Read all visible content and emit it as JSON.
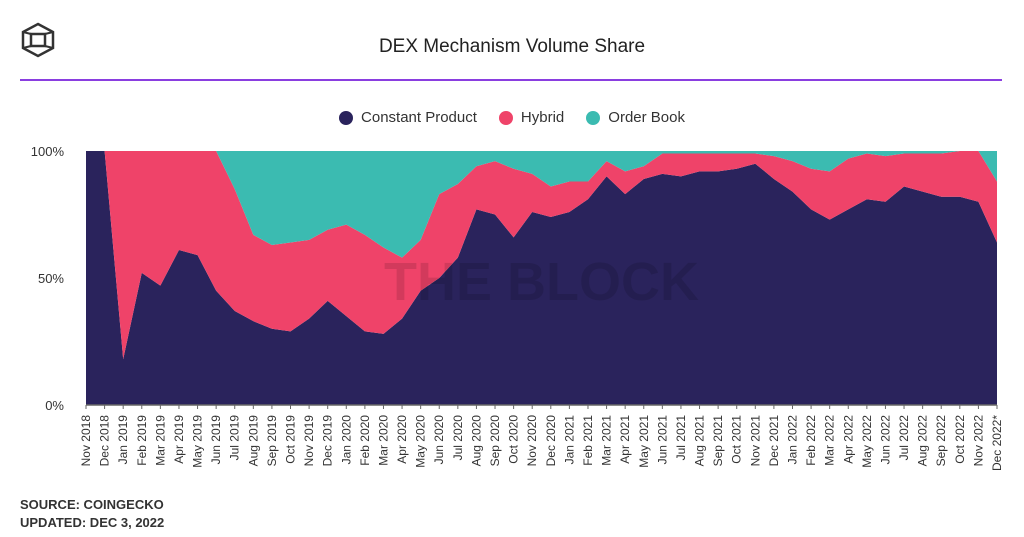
{
  "title": "DEX Mechanism Volume Share",
  "watermark": "THE BLOCK",
  "footer": {
    "source": "SOURCE: COINGECKO",
    "updated": "UPDATED: DEC 3, 2022"
  },
  "colors": {
    "Constant Product": "#2a235c",
    "Hybrid": "#ef4369",
    "Order Book": "#3bbbb1"
  },
  "chart_data": {
    "type": "area",
    "stacked": true,
    "title": "DEX Mechanism Volume Share",
    "legend_position": "top",
    "ylim": [
      0,
      100
    ],
    "yticks": [
      "0%",
      "50%",
      "100%"
    ],
    "categories": [
      "Nov 2018",
      "Dec 2018",
      "Jan 2019",
      "Feb 2019",
      "Mar 2019",
      "Apr 2019",
      "May 2019",
      "Jun 2019",
      "Jul 2019",
      "Aug 2019",
      "Sep 2019",
      "Oct 2019",
      "Nov 2019",
      "Dec 2019",
      "Jan 2020",
      "Feb 2020",
      "Mar 2020",
      "Apr 2020",
      "May 2020",
      "Jun 2020",
      "Jul 2020",
      "Aug 2020",
      "Sep 2020",
      "Oct 2020",
      "Nov 2020",
      "Dec 2020",
      "Jan 2021",
      "Feb 2021",
      "Mar 2021",
      "Apr 2021",
      "May 2021",
      "Jun 2021",
      "Jul 2021",
      "Aug 2021",
      "Sep 2021",
      "Oct 2021",
      "Nov 2021",
      "Dec 2021",
      "Jan 2022",
      "Feb 2022",
      "Mar 2022",
      "Apr 2022",
      "May 2022",
      "Jun 2022",
      "Jul 2022",
      "Aug 2022",
      "Sep 2022",
      "Oct 2022",
      "Nov 2022",
      "Dec 2022*"
    ],
    "series": [
      {
        "name": "Constant Product",
        "values": [
          100,
          100,
          18,
          52,
          47,
          61,
          59,
          45,
          37,
          33,
          30,
          29,
          34,
          41,
          35,
          29,
          28,
          34,
          45,
          50,
          58,
          77,
          75,
          66,
          76,
          74,
          76,
          81,
          90,
          83,
          89,
          91,
          90,
          92,
          92,
          93,
          95,
          89,
          84,
          77,
          73,
          77,
          81,
          80,
          86,
          84,
          82,
          82,
          80,
          64
        ]
      },
      {
        "name": "Hybrid",
        "values": [
          0,
          0,
          82,
          48,
          53,
          39,
          41,
          55,
          48,
          34,
          33,
          35,
          31,
          28,
          36,
          38,
          34,
          24,
          20,
          33,
          29,
          17,
          21,
          27,
          15,
          12,
          12,
          7,
          6,
          9,
          5,
          8,
          9,
          7,
          7,
          6,
          4,
          9,
          12,
          16,
          19,
          20,
          18,
          18,
          13,
          15,
          17,
          18,
          20,
          24
        ]
      },
      {
        "name": "Order Book",
        "values": [
          0,
          0,
          0,
          0,
          0,
          0,
          0,
          0,
          15,
          33,
          37,
          36,
          35,
          31,
          29,
          33,
          38,
          42,
          35,
          17,
          13,
          6,
          4,
          7,
          9,
          14,
          12,
          12,
          4,
          8,
          6,
          1,
          1,
          1,
          1,
          1,
          1,
          2,
          4,
          7,
          8,
          3,
          1,
          2,
          1,
          1,
          1,
          0,
          0,
          12
        ]
      }
    ]
  }
}
